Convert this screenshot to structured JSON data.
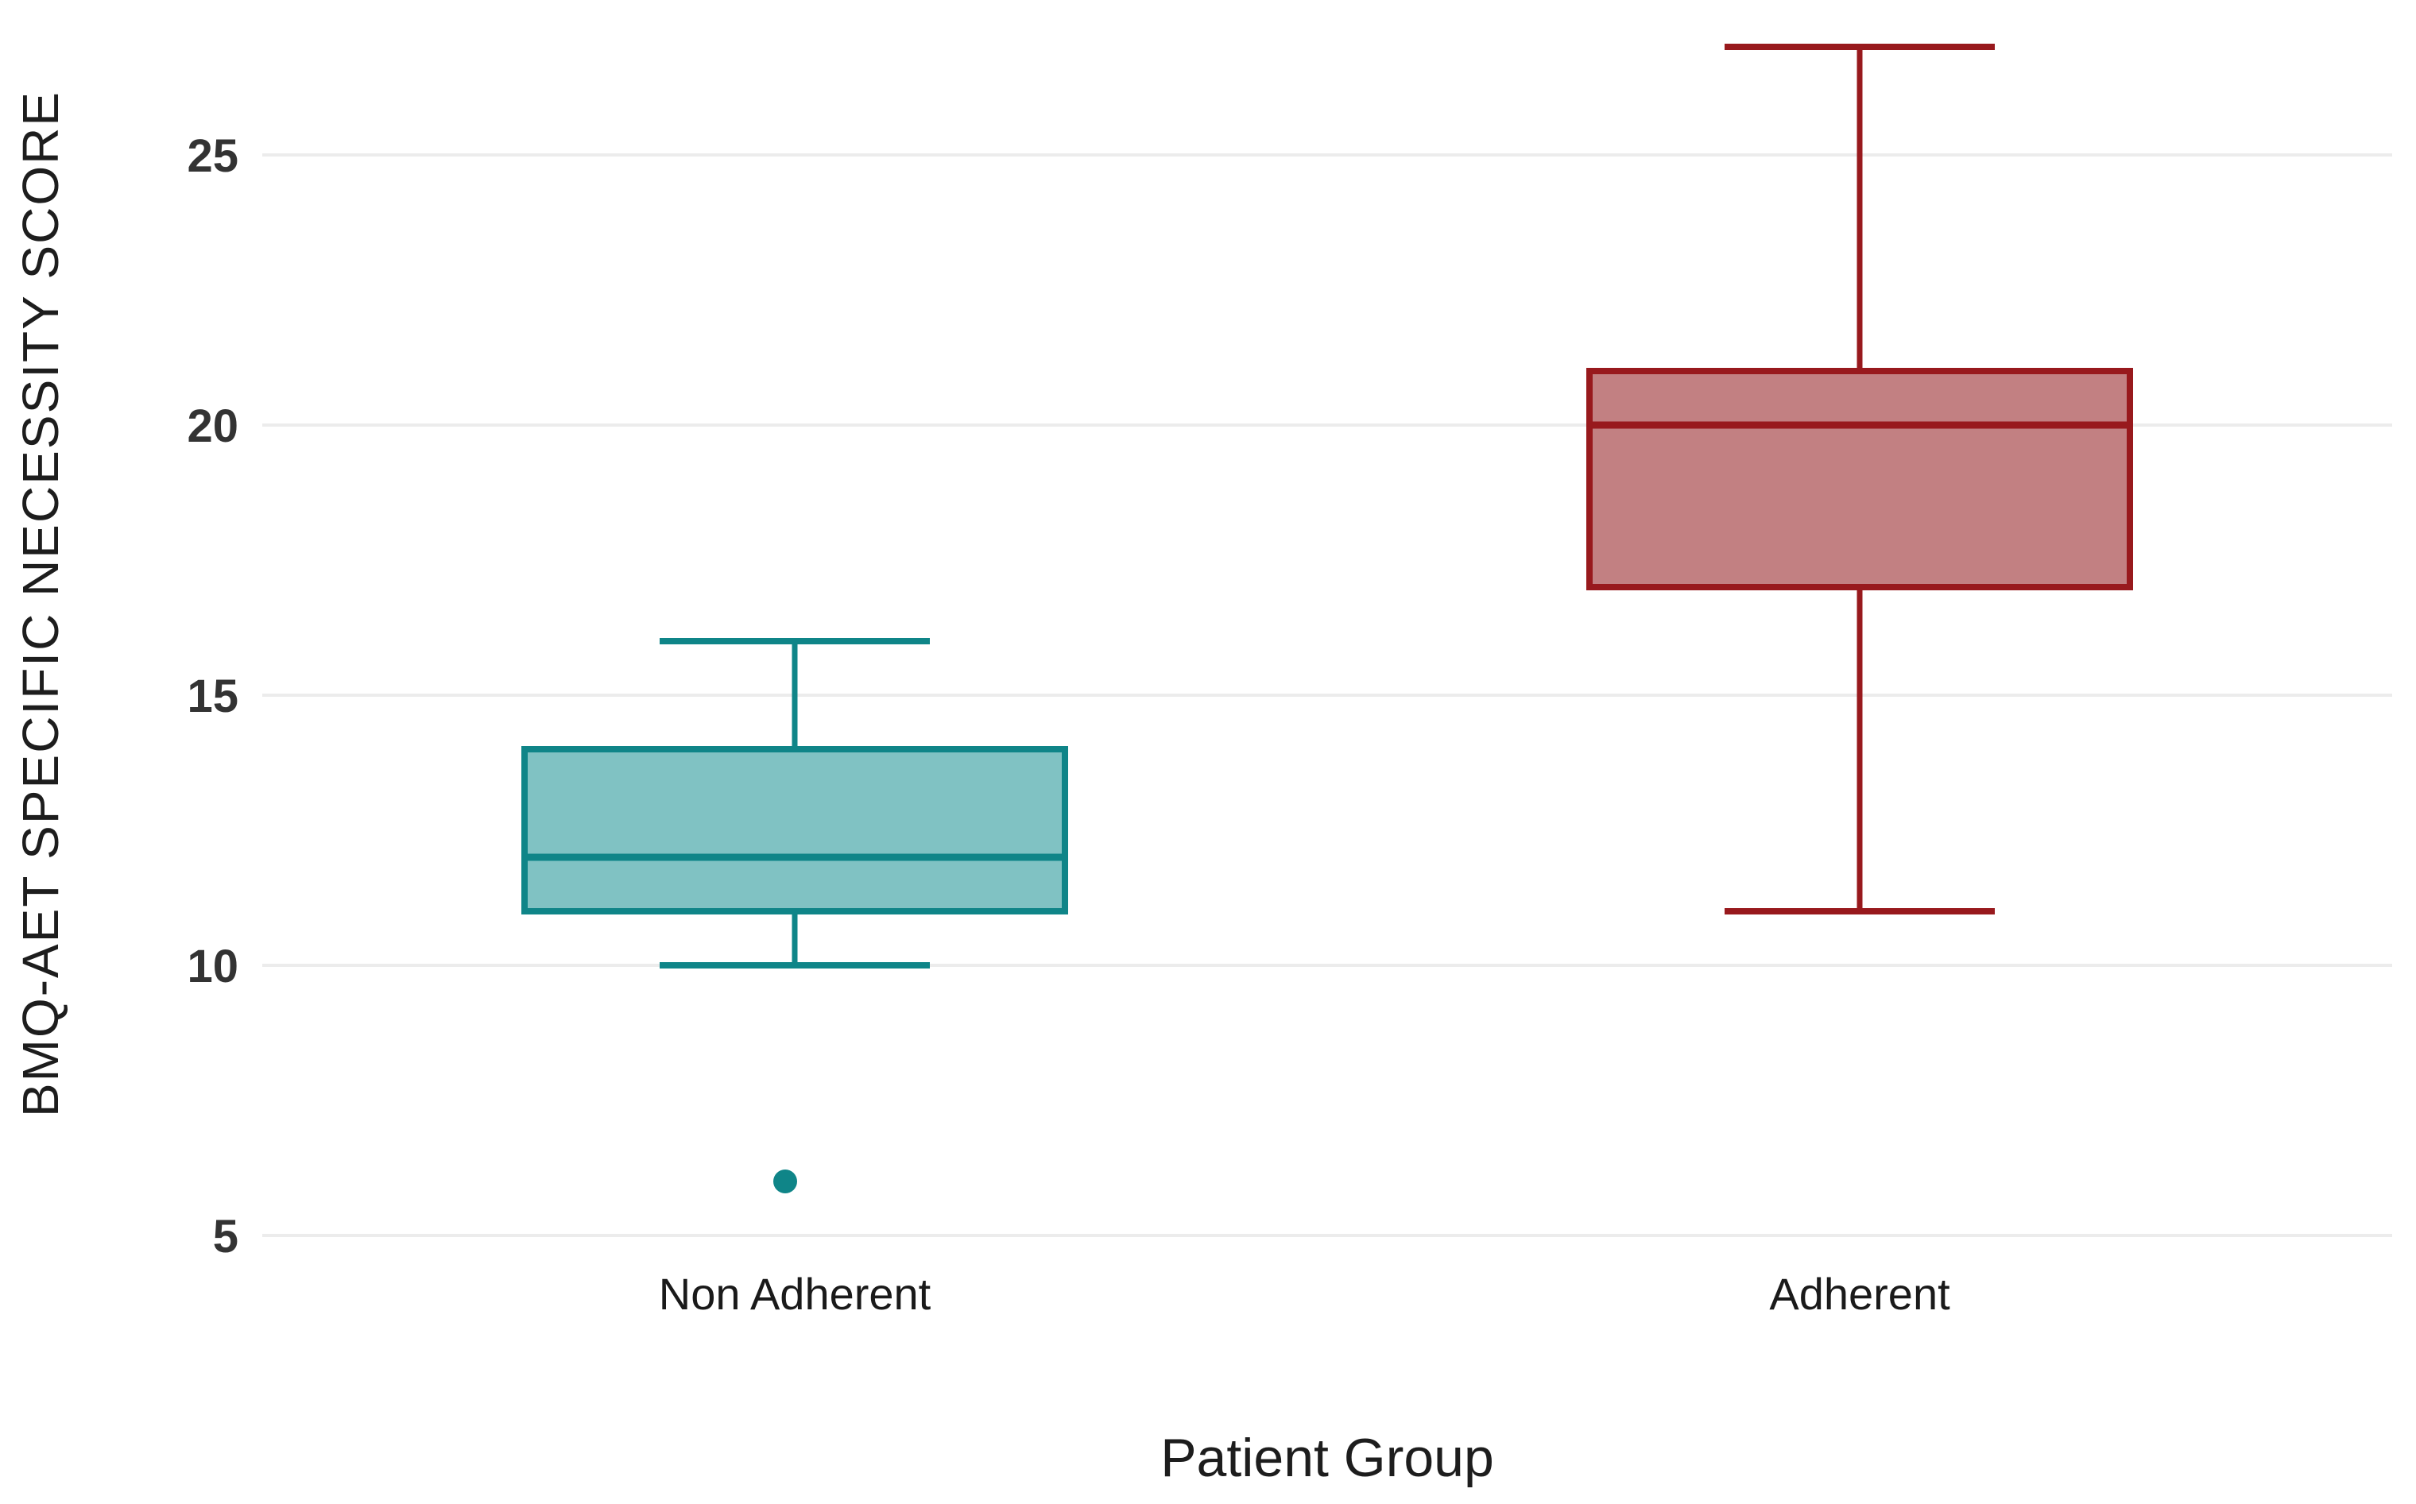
{
  "chart_data": {
    "type": "boxplot",
    "title": "",
    "xlabel": "Patient Group",
    "ylabel": "BMQ-AET SPECIFIC NECESSITY SCORE",
    "categories": [
      "Non Adherent",
      "Adherent"
    ],
    "y_ticks": [
      5,
      10,
      15,
      20,
      25
    ],
    "ylim": [
      4.7,
      27.9
    ],
    "grid": "horizontal-only",
    "legend": "none",
    "series": [
      {
        "name": "Non Adherent",
        "whisker_low": 10,
        "q1": 11,
        "median": 12,
        "q3": 14,
        "whisker_high": 16,
        "outliers": [
          6
        ],
        "fill": "#80c2c3",
        "stroke": "#0f8588"
      },
      {
        "name": "Adherent",
        "whisker_low": 11,
        "q1": 17,
        "median": 20,
        "q3": 21,
        "whisker_high": 27,
        "outliers": [],
        "fill": "#c28082",
        "stroke": "#98191d"
      }
    ],
    "colors": {
      "background": "#ffffff",
      "gridline": "#ececec",
      "tick_text": "#333333",
      "category_text": "#1a1a1a",
      "axis_title_text": "#1d1d1d"
    }
  }
}
